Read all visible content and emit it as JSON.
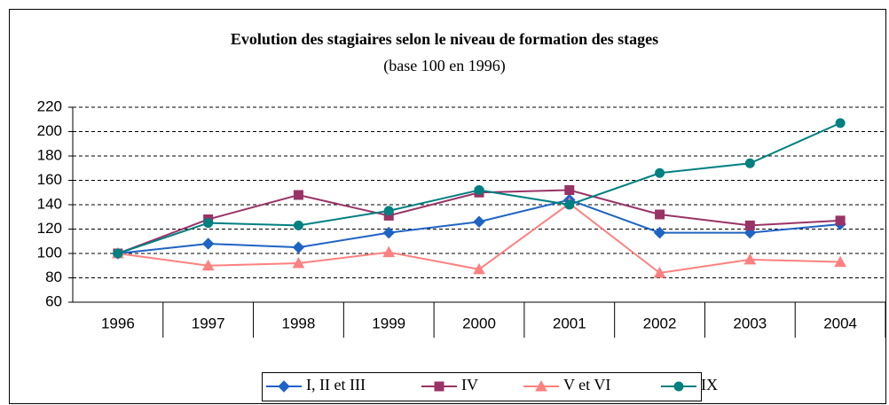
{
  "chart_data": {
    "type": "line",
    "title": "Evolution des stagiaires selon le niveau de formation des stages",
    "subtitle": "(base 100 en 1996)",
    "categories": [
      "1996",
      "1997",
      "1998",
      "1999",
      "2000",
      "2001",
      "2002",
      "2003",
      "2004"
    ],
    "series": [
      {
        "name": "I, II et III",
        "color": "#1f63c4",
        "marker": "diamond",
        "values": [
          100,
          108,
          105,
          117,
          126,
          144,
          117,
          117,
          124
        ]
      },
      {
        "name": "IV",
        "color": "#993366",
        "marker": "square",
        "values": [
          100,
          128,
          148,
          131,
          150,
          152,
          132,
          123,
          127
        ]
      },
      {
        "name": "V et VI",
        "color": "#ff8080",
        "marker": "triangle",
        "values": [
          100,
          90,
          92,
          101,
          87,
          141,
          84,
          95,
          93
        ]
      },
      {
        "name": "IX",
        "color": "#008080",
        "marker": "circle",
        "values": [
          100,
          125,
          123,
          135,
          152,
          140,
          166,
          174,
          207
        ]
      }
    ],
    "ylim": [
      60,
      220
    ],
    "yticks": [
      60,
      80,
      100,
      120,
      140,
      160,
      180,
      200,
      220
    ],
    "grid": true,
    "legend": "bottom"
  }
}
